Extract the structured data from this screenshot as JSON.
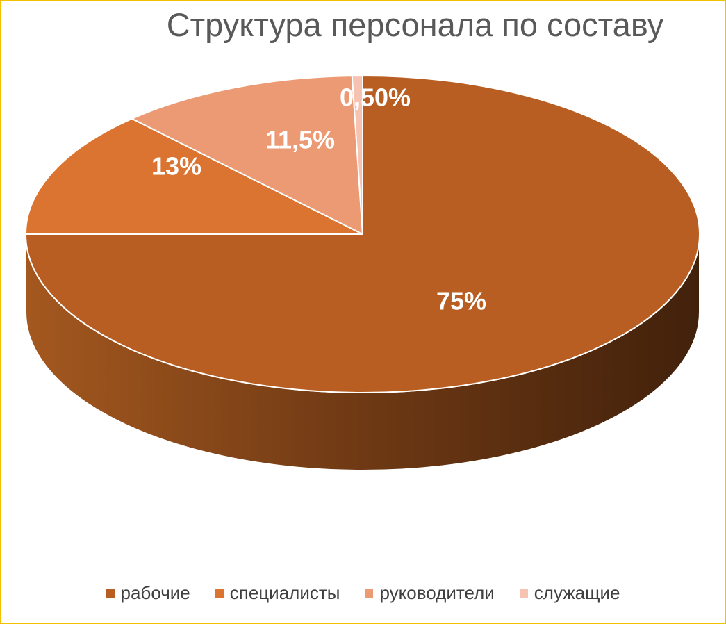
{
  "chart_data": {
    "type": "pie",
    "title": "Структура персонала по составу",
    "categories": [
      "рабочие",
      "специалисты",
      "руководители",
      "служащие"
    ],
    "values": [
      75,
      13,
      11.5,
      0.5
    ],
    "data_labels": [
      "75%",
      "13%",
      "11,5%",
      "0,50%"
    ],
    "colors": [
      "#b85e22",
      "#da7430",
      "#eb9a74",
      "#f6c2b2"
    ],
    "legend_position": "bottom",
    "style": "3d-pie"
  }
}
